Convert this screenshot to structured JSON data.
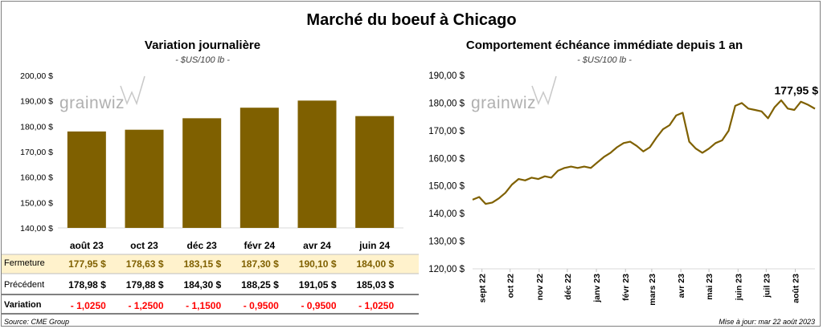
{
  "title": "Marché du boeuf à Chicago",
  "left": {
    "title": "Variation journalière",
    "unit": "- $US/100 lb -",
    "y_ticks": [
      "200,00 $",
      "190,00 $",
      "180,00 $",
      "170,00 $",
      "160,00 $",
      "150,00 $",
      "140,00 $"
    ],
    "rows": {
      "close_label": "Fermeture",
      "prev_label": "Précédent",
      "var_label": "Variation",
      "close": [
        "177,95",
        "178,63",
        "183,15",
        "187,30",
        "190,10",
        "184,00"
      ],
      "prev": [
        "178,98",
        "179,88",
        "184,30",
        "188,25",
        "191,05",
        "185,03"
      ],
      "variation": [
        "- 1,0250",
        "- 1,2500",
        "- 1,1500",
        "- 0,9500",
        "- 0,9500",
        "- 1,0250"
      ],
      "currency": "$"
    }
  },
  "right": {
    "title": "Comportement  échéance immédiate depuis 1 an",
    "unit": "- $US/100 lb -",
    "y_ticks": [
      "190,00 $",
      "180,00 $",
      "170,00 $",
      "160,00 $",
      "150,00 $",
      "140,00 $",
      "130,00 $",
      "120,00 $"
    ],
    "x_ticks": [
      "sept 22",
      "oct 22",
      "nov 22",
      "déc 22",
      "janv 23",
      "févr 23",
      "mars 23",
      "avr 23",
      "mai 23",
      "juin 23",
      "juil 23",
      "août 23"
    ],
    "last_label": "177,95 $"
  },
  "logo_text": "grainwiz",
  "footer": {
    "source": "Source: CME Group",
    "update": "Mise à jour: mar 22 août 2023"
  },
  "colors": {
    "bar": "#7f6000",
    "line": "#7f6000",
    "close_band": "#fff2cc",
    "negative": "#ff0000"
  },
  "chart_data": [
    {
      "type": "bar",
      "title": "Variation journalière",
      "categories": [
        "août 23",
        "oct 23",
        "déc 23",
        "févr 24",
        "avr 24",
        "juin 24"
      ],
      "values": [
        177.95,
        178.63,
        183.15,
        187.3,
        190.1,
        184.0
      ],
      "ylim": [
        140,
        200
      ],
      "ylabel": "",
      "grid": false
    },
    {
      "type": "line",
      "title": "Comportement  échéance immédiate depuis 1 an",
      "ylim": [
        120,
        190
      ],
      "x": [
        "2022-08-22",
        "2022-08-29",
        "2022-09-05",
        "2022-09-12",
        "2022-09-19",
        "2022-09-26",
        "2022-10-03",
        "2022-10-10",
        "2022-10-17",
        "2022-10-24",
        "2022-10-31",
        "2022-11-07",
        "2022-11-14",
        "2022-11-21",
        "2022-11-28",
        "2022-12-05",
        "2022-12-12",
        "2022-12-19",
        "2022-12-26",
        "2023-01-02",
        "2023-01-09",
        "2023-01-16",
        "2023-01-23",
        "2023-01-30",
        "2023-02-06",
        "2023-02-13",
        "2023-02-20",
        "2023-02-27",
        "2023-03-06",
        "2023-03-13",
        "2023-03-20",
        "2023-03-27",
        "2023-04-03",
        "2023-04-10",
        "2023-04-17",
        "2023-04-24",
        "2023-05-01",
        "2023-05-08",
        "2023-05-15",
        "2023-05-22",
        "2023-05-29",
        "2023-06-05",
        "2023-06-12",
        "2023-06-19",
        "2023-06-26",
        "2023-07-03",
        "2023-07-10",
        "2023-07-17",
        "2023-07-24",
        "2023-07-31",
        "2023-08-07",
        "2023-08-14",
        "2023-08-22"
      ],
      "values": [
        145.0,
        146.0,
        143.5,
        144.0,
        145.5,
        147.5,
        150.5,
        152.5,
        152.0,
        153.0,
        152.5,
        153.5,
        153.0,
        155.5,
        156.5,
        157.0,
        156.5,
        157.0,
        156.5,
        158.5,
        160.5,
        162.0,
        164.0,
        165.5,
        166.0,
        164.5,
        162.5,
        164.0,
        167.5,
        170.5,
        172.0,
        175.5,
        176.5,
        166.0,
        163.5,
        162.0,
        163.5,
        165.5,
        166.5,
        170.0,
        179.0,
        180.0,
        178.0,
        177.5,
        177.0,
        174.5,
        178.5,
        181.0,
        178.0,
        177.5,
        180.5,
        179.5,
        177.95
      ],
      "last_label": "177,95 $"
    }
  ]
}
